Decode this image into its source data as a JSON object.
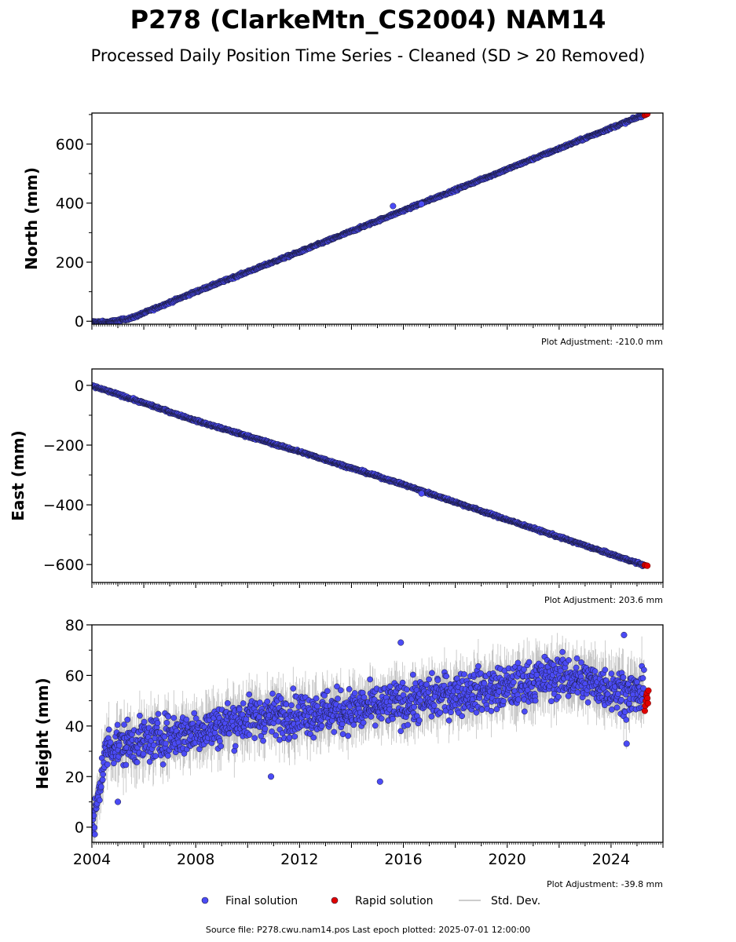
{
  "title": "P278 (ClarkeMtn_CS2004) NAM14",
  "subtitle": "Processed Daily Position Time Series - Cleaned (SD > 20 Removed)",
  "legend": {
    "final_label": "Final solution",
    "rapid_label": "Rapid solution",
    "sd_label": "Std. Dev."
  },
  "footer": "Source file: P278.cwu.nam14.pos  Last epoch plotted: 2025-07-01 12:00:00",
  "colors": {
    "final": "#4b4bf5",
    "rapid": "#e00000",
    "sd": "#bbbbbb",
    "edge": "#1a1a3a"
  },
  "chart_data": [
    {
      "type": "scatter",
      "ylabel": "North (mm)",
      "adjustment": "Plot Adjustment: -210.0 mm",
      "xlim": [
        2004.0,
        2026.0
      ],
      "ylim": [
        -10,
        705
      ],
      "yticks": [
        0,
        200,
        400,
        600
      ],
      "yticklabels": [
        "0",
        "200",
        "400",
        "600"
      ],
      "show_xticklabels": false,
      "trend": [
        [
          2004.0,
          -2
        ],
        [
          2004.6,
          -3
        ],
        [
          2005.5,
          10
        ],
        [
          2008.0,
          100
        ],
        [
          2012.0,
          235
        ],
        [
          2016.0,
          375
        ],
        [
          2020.0,
          515
        ],
        [
          2025.3,
          700
        ]
      ],
      "noise": 3,
      "sd_spread": 3,
      "outliers": [
        [
          2015.6,
          390
        ],
        [
          2016.7,
          397
        ]
      ],
      "rapid": [
        [
          2025.3,
          698
        ],
        [
          2025.35,
          700
        ],
        [
          2025.4,
          702
        ]
      ]
    },
    {
      "type": "scatter",
      "ylabel": "East (mm)",
      "adjustment": "Plot Adjustment: 203.6 mm",
      "xlim": [
        2004.0,
        2026.0
      ],
      "ylim": [
        -660,
        55
      ],
      "yticks": [
        0,
        -200,
        -400,
        -600
      ],
      "yticklabels": [
        "0",
        "−200",
        "−400",
        "−600"
      ],
      "show_xticklabels": false,
      "trend": [
        [
          2004.0,
          -2
        ],
        [
          2005.0,
          -30
        ],
        [
          2008.0,
          -118
        ],
        [
          2012.0,
          -222
        ],
        [
          2016.0,
          -332
        ],
        [
          2020.0,
          -450
        ],
        [
          2025.3,
          -603
        ]
      ],
      "noise": 3,
      "sd_spread": 3,
      "outliers": [
        [
          2016.7,
          -362
        ]
      ],
      "rapid": [
        [
          2025.3,
          -602
        ],
        [
          2025.35,
          -603
        ],
        [
          2025.4,
          -604
        ]
      ]
    },
    {
      "type": "scatter",
      "ylabel": "Height (mm)",
      "adjustment": "Plot Adjustment: -39.8 mm",
      "xlim": [
        2004.0,
        2026.0
      ],
      "ylim": [
        -6,
        80
      ],
      "yticks": [
        0,
        20,
        40,
        60,
        80
      ],
      "yticklabels": [
        "0",
        "20",
        "40",
        "60",
        "80"
      ],
      "xticks": [
        2004,
        2008,
        2012,
        2016,
        2020,
        2024
      ],
      "xticklabels": [
        "2004",
        "2008",
        "2012",
        "2016",
        "2020",
        "2024"
      ],
      "show_xticklabels": true,
      "trend": [
        [
          2004.0,
          -2
        ],
        [
          2004.15,
          5
        ],
        [
          2004.35,
          20
        ],
        [
          2004.6,
          32
        ],
        [
          2006.0,
          34
        ],
        [
          2008.0,
          38
        ],
        [
          2010.0,
          43
        ],
        [
          2012.0,
          45
        ],
        [
          2014.0,
          46
        ],
        [
          2016.0,
          49
        ],
        [
          2018.0,
          53
        ],
        [
          2020.0,
          55
        ],
        [
          2022.0,
          60
        ],
        [
          2024.0,
          55
        ],
        [
          2025.3,
          52
        ]
      ],
      "noise": 6,
      "sd_spread": 8,
      "outliers": [
        [
          2015.9,
          73
        ],
        [
          2015.1,
          18
        ],
        [
          2024.5,
          76
        ],
        [
          2005.0,
          10
        ],
        [
          2010.9,
          20
        ],
        [
          2024.6,
          33
        ]
      ],
      "rapid": [
        [
          2025.3,
          46
        ],
        [
          2025.32,
          48
        ],
        [
          2025.34,
          50
        ],
        [
          2025.36,
          52
        ],
        [
          2025.38,
          53
        ],
        [
          2025.4,
          51
        ],
        [
          2025.42,
          49
        ],
        [
          2025.44,
          54
        ]
      ]
    }
  ]
}
